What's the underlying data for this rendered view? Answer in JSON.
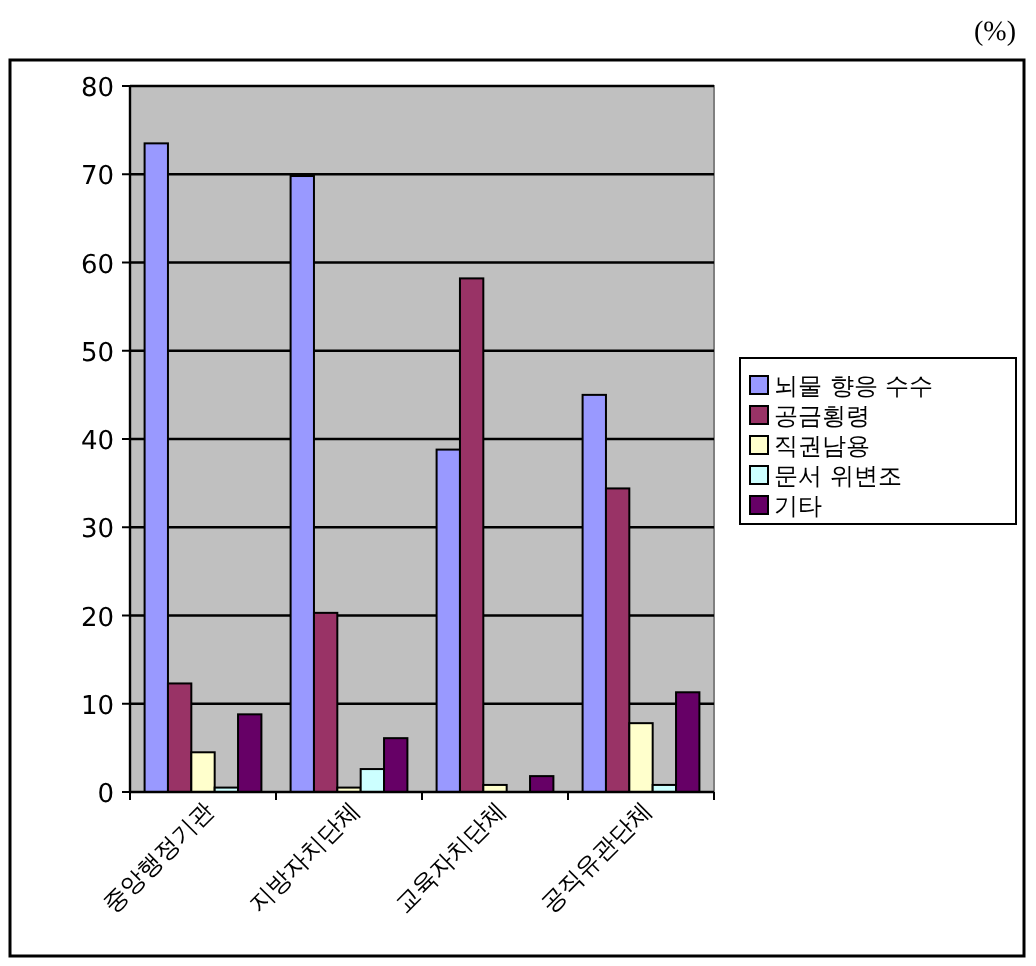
{
  "chart_data": {
    "type": "bar",
    "categories": [
      "중앙행정기관",
      "지방자치단체",
      "교육자치단체",
      "공직유관단체"
    ],
    "series": [
      {
        "name": "뇌물 향응 수수",
        "color": "#9999ff",
        "values": [
          73.5,
          69.8,
          38.8,
          45.0
        ]
      },
      {
        "name": "공금횡령",
        "color": "#993366",
        "values": [
          12.3,
          20.3,
          58.2,
          34.4
        ]
      },
      {
        "name": "직권남용",
        "color": "#ffffcc",
        "values": [
          4.5,
          0.5,
          0.8,
          7.8
        ]
      },
      {
        "name": "문서 위변조",
        "color": "#ccffff",
        "values": [
          0.5,
          2.6,
          0,
          0.8
        ]
      },
      {
        "name": "기타",
        "color": "#660066",
        "values": [
          8.8,
          6.1,
          1.8,
          11.3
        ]
      }
    ],
    "ylim": [
      0,
      80
    ],
    "yticks": [
      0,
      10,
      20,
      30,
      40,
      50,
      60,
      70,
      80
    ],
    "grid": "y",
    "legend": "right",
    "annotations": [
      "(%)"
    ]
  }
}
